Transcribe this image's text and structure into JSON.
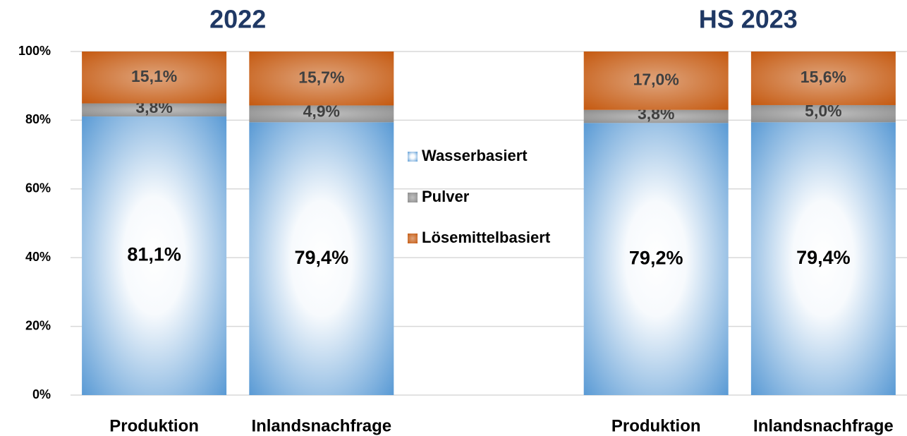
{
  "chart_data": {
    "type": "stacked_bar",
    "titles": [
      "2022",
      "HS 2023"
    ],
    "categories": [
      "Produktion",
      "Inlandsnachfrage",
      null,
      "Produktion",
      "Inlandsnachfrage"
    ],
    "series": [
      {
        "name": "Wasserbasiert",
        "color": "#5b9bd5",
        "values": [
          81.1,
          79.4,
          null,
          79.2,
          79.4
        ],
        "value_labels": [
          "81,1%",
          "79,4%",
          null,
          "79,2%",
          "79,4%"
        ]
      },
      {
        "name": "Pulver",
        "color": "#8c8c8c",
        "values": [
          3.8,
          4.9,
          null,
          3.8,
          5.0
        ],
        "value_labels": [
          "3,8%",
          "4,9%",
          null,
          "3,8%",
          "5,0%"
        ]
      },
      {
        "name": "Lösemittelbasiert",
        "color": "#c55a11",
        "values": [
          15.1,
          15.7,
          null,
          17.0,
          15.6
        ],
        "value_labels": [
          "15,1%",
          "15,7%",
          null,
          "17,0%",
          "15,6%"
        ]
      }
    ],
    "ylim": [
      0,
      100
    ],
    "yticks": [
      {
        "value": 0,
        "label": "0%"
      },
      {
        "value": 20,
        "label": "20%"
      },
      {
        "value": 40,
        "label": "40%"
      },
      {
        "value": 60,
        "label": "60%"
      },
      {
        "value": 80,
        "label": "80%"
      },
      {
        "value": 100,
        "label": "100%"
      }
    ],
    "grid": true
  }
}
